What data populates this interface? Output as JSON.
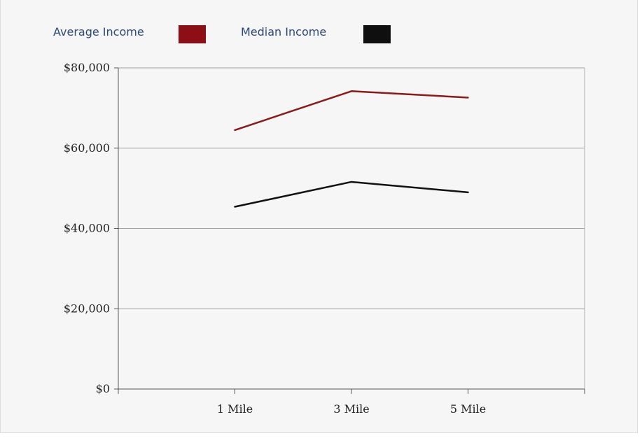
{
  "legend": {
    "items": [
      {
        "label": "Average Income",
        "color": "#8b0f14"
      },
      {
        "label": "Median Income",
        "color": "#0f0f0f"
      }
    ]
  },
  "chart_data": {
    "type": "line",
    "categories": [
      "1 Mile",
      "3 Mile",
      "5 Mile"
    ],
    "series": [
      {
        "name": "Average Income",
        "color": "#8b1a1a",
        "values": [
          64500,
          74200,
          72600
        ]
      },
      {
        "name": "Median Income",
        "color": "#111111",
        "values": [
          45400,
          51600,
          49000
        ]
      }
    ],
    "ylim": [
      0,
      80000
    ],
    "yticks": [
      0,
      20000,
      40000,
      60000,
      80000
    ],
    "ytick_labels": [
      "$0",
      "$20,000",
      "$40,000",
      "$60,000",
      "$80,000"
    ],
    "title": "",
    "xlabel": "",
    "ylabel": "",
    "grid": true,
    "legend_position": "top-left"
  }
}
